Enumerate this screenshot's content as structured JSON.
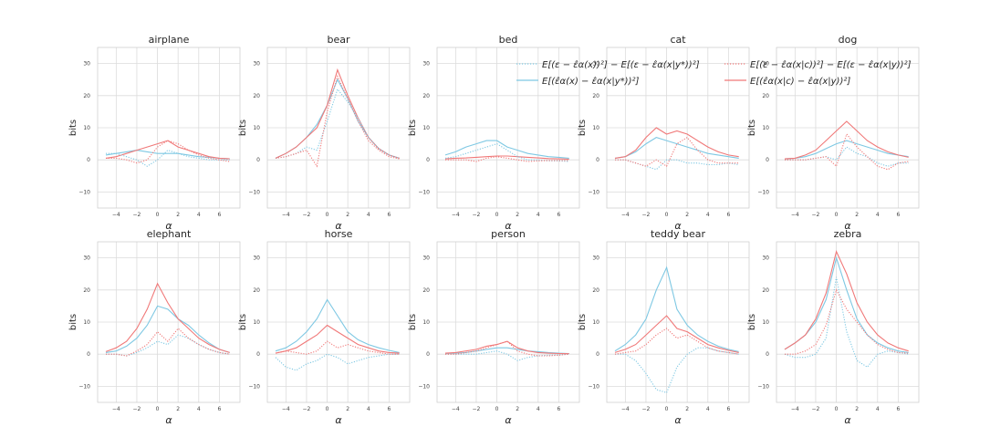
{
  "chart_data": {
    "type": "line",
    "layout": "grid 2x5",
    "xlabel": "α",
    "ylabel": "bits",
    "xlim": [
      -5.8,
      8.0
    ],
    "ylim": [
      -15,
      35
    ],
    "xticks": [
      -4,
      -2,
      0,
      2,
      4,
      6
    ],
    "yticks": [
      -10,
      0,
      10,
      20,
      30
    ],
    "grid": true,
    "legend_position": "top-right",
    "series_legend": [
      {
        "id": "s1",
        "label": "E[(ε − ε̂α(x))²] − E[(ε − ε̂α(x|y*))²]",
        "color": "#7ec8e3",
        "style": "dotted"
      },
      {
        "id": "s2",
        "label": "E[(ε̂α(x) − ε̂α(x|y*))²]",
        "color": "#7ec8e3",
        "style": "solid"
      },
      {
        "id": "s3",
        "label": "E[(ε − ε̂α(x|c))²] − E[(ε − ε̂α(x|y))²]",
        "color": "#f07878",
        "style": "dotted"
      },
      {
        "id": "s4",
        "label": "E[(ε̂α(x|c) − ε̂α(x|y))²]",
        "color": "#f07878",
        "style": "solid"
      }
    ],
    "x": [
      -5,
      -4,
      -3,
      -2,
      -1,
      0,
      1,
      2,
      3,
      4,
      5,
      6,
      7
    ],
    "panels": [
      {
        "title": "airplane",
        "s2": [
          1.5,
          2,
          2.5,
          3,
          2.5,
          2,
          2,
          2,
          1.5,
          1,
          0.8,
          0.5,
          0.3
        ],
        "s4": [
          0.5,
          1,
          2,
          3,
          4,
          5,
          6,
          4,
          3,
          2,
          1,
          0.5,
          0.3
        ],
        "s1": [
          2,
          2,
          1,
          0,
          -2,
          0,
          3,
          2,
          1,
          0.5,
          0,
          0,
          0
        ],
        "s3": [
          0.5,
          0.5,
          0,
          -1,
          0,
          4,
          6,
          5,
          3,
          1.5,
          0.5,
          0,
          -0.5
        ]
      },
      {
        "title": "bear",
        "s2": [
          0.5,
          2,
          4,
          7,
          11,
          17,
          25,
          19,
          12,
          7,
          3.5,
          1.5,
          0.5
        ],
        "s4": [
          0.5,
          2,
          4,
          7,
          10,
          17,
          28,
          20,
          13,
          7,
          3.5,
          1.5,
          0.5
        ],
        "s1": [
          0.5,
          1,
          2,
          4,
          3,
          12,
          22,
          18,
          13,
          7,
          3.5,
          1.5,
          0.5
        ],
        "s3": [
          0.5,
          1,
          2,
          3,
          -2,
          15,
          26,
          19,
          12,
          6,
          3,
          1,
          0.3
        ]
      },
      {
        "title": "bed",
        "s2": [
          1.5,
          2.5,
          4,
          5,
          6,
          6,
          4,
          3,
          2,
          1.5,
          1,
          0.8,
          0.5
        ],
        "s4": [
          0.3,
          0.5,
          0.6,
          0.8,
          1,
          1.2,
          1.2,
          1,
          0.8,
          0.6,
          0.4,
          0.3,
          0.2
        ],
        "s1": [
          0.5,
          1,
          2,
          3,
          4,
          5,
          3,
          1,
          0,
          0,
          -0.3,
          -0.3,
          -0.5
        ],
        "s3": [
          0,
          0,
          0,
          -0.5,
          0.5,
          1,
          0.5,
          0,
          -0.5,
          -0.3,
          -0.2,
          -0.2,
          -0.2
        ]
      },
      {
        "title": "cat",
        "s2": [
          0.5,
          1,
          2.5,
          5,
          7,
          6,
          5,
          4,
          3,
          2,
          1.5,
          1,
          0.5
        ],
        "s4": [
          0.5,
          1,
          3,
          7,
          10,
          8,
          9,
          8,
          6,
          4,
          2.5,
          1.5,
          1
        ],
        "s1": [
          0,
          0,
          -1,
          -2,
          -3,
          0,
          0,
          -1,
          -1,
          -1.5,
          -1.5,
          -1,
          -1.5
        ],
        "s3": [
          0,
          0,
          -1,
          -2,
          0,
          -2,
          5,
          7,
          3,
          0,
          -1,
          -1,
          -1
        ]
      },
      {
        "title": "dog",
        "s2": [
          0.3,
          0.5,
          1,
          2,
          3.5,
          5,
          6,
          5,
          4,
          3,
          2,
          1.5,
          1
        ],
        "s4": [
          0.3,
          0.5,
          1.5,
          3,
          6,
          9,
          12,
          9,
          6,
          4,
          2.5,
          1.5,
          0.8
        ],
        "s1": [
          0,
          0,
          0,
          0.5,
          1,
          0,
          4,
          2,
          1,
          -1,
          -2,
          -1,
          -1
        ],
        "s3": [
          0,
          0,
          0,
          0.5,
          1,
          -2,
          8,
          4,
          1,
          -2,
          -3,
          -1,
          -0.5
        ]
      },
      {
        "title": "elephant",
        "s2": [
          0.5,
          1,
          2.5,
          5,
          9,
          15,
          14,
          11,
          9,
          6,
          3.5,
          1.5,
          0.5
        ],
        "s4": [
          0.8,
          2,
          4,
          8,
          14,
          22,
          16,
          11,
          8,
          5,
          3,
          1.5,
          0.5
        ],
        "s1": [
          0,
          0,
          -0.5,
          0.5,
          2,
          4,
          3,
          6,
          5,
          3,
          1.5,
          0.5,
          0
        ],
        "s3": [
          0,
          0,
          -0.5,
          1,
          3,
          7,
          4,
          8,
          5,
          3,
          1.5,
          0.5,
          0
        ]
      },
      {
        "title": "horse",
        "s2": [
          1,
          2,
          4,
          7,
          11,
          17,
          12,
          7,
          4.5,
          3,
          2,
          1.2,
          0.5
        ],
        "s4": [
          0.3,
          1,
          2,
          4,
          6,
          9,
          7,
          5,
          3,
          2,
          1,
          0.5,
          0.3
        ],
        "s1": [
          -1,
          -4,
          -5,
          -3,
          -2,
          0,
          -1,
          -3,
          -2,
          -1,
          -0.5,
          0,
          0
        ],
        "s3": [
          0.3,
          1,
          0.5,
          0,
          1,
          4,
          2,
          3,
          2,
          1,
          0.5,
          0,
          0
        ]
      },
      {
        "title": "person",
        "s2": [
          0.2,
          0.3,
          0.5,
          1,
          1.5,
          2,
          2,
          1.5,
          1,
          0.8,
          0.5,
          0.3,
          0.2
        ],
        "s4": [
          0.3,
          0.5,
          1,
          1.5,
          2.5,
          3,
          4,
          2,
          1,
          0.5,
          0.3,
          0.2,
          0.2
        ],
        "s1": [
          0,
          0,
          0,
          0,
          0.5,
          1,
          0,
          -2,
          -1,
          -0.5,
          -0.3,
          -0.2,
          0
        ],
        "s3": [
          0,
          0,
          0.5,
          1,
          2,
          3,
          4,
          1,
          0,
          -0.5,
          -0.5,
          -0.3,
          0
        ]
      },
      {
        "title": "teddy bear",
        "s2": [
          1,
          3,
          6,
          11,
          20,
          27,
          14,
          9,
          6,
          4,
          2.5,
          1.5,
          0.8
        ],
        "s4": [
          0.5,
          1.5,
          3,
          6,
          9,
          12,
          8,
          7,
          5,
          3,
          2,
          1.2,
          0.5
        ],
        "s1": [
          0,
          0,
          -2,
          -6,
          -11,
          -12,
          -4,
          0,
          2,
          2,
          1,
          0.5,
          0
        ],
        "s3": [
          0,
          0.5,
          1,
          3,
          6,
          8,
          5,
          6,
          4,
          2,
          1,
          0.5,
          0
        ]
      },
      {
        "title": "zebra",
        "s2": [
          1.5,
          3.5,
          6,
          10,
          17,
          30,
          20,
          11,
          6,
          3.5,
          2,
          1,
          0.5
        ],
        "s4": [
          1.5,
          3.5,
          6,
          11,
          19,
          32,
          25,
          16,
          10,
          6,
          3.5,
          2,
          1
        ],
        "s1": [
          0,
          -1,
          -1,
          0,
          5,
          24,
          7,
          -2,
          -4,
          0,
          1,
          0.5,
          0
        ],
        "s3": [
          0,
          0,
          1,
          3,
          9,
          20,
          14,
          10,
          6,
          3,
          1.5,
          0.5,
          0.3
        ]
      }
    ]
  }
}
